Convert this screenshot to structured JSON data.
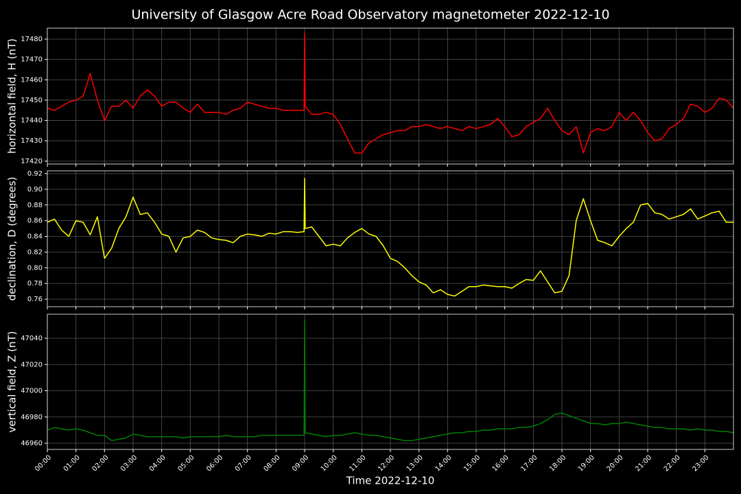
{
  "title": "University of Glasgow Acre Road Observatory magnetometer 2022-12-10",
  "chart_data": [
    {
      "type": "line",
      "ylabel": "horizontal field, H (nT)",
      "color": "#ff0000",
      "grid": true,
      "xlim": [
        0,
        24
      ],
      "ylim": [
        17418.6,
        17485.4
      ],
      "xticks": [
        0,
        1,
        2,
        3,
        4,
        5,
        6,
        7,
        8,
        9,
        10,
        11,
        12,
        13,
        14,
        15,
        16,
        17,
        18,
        19,
        20,
        21,
        22,
        23
      ],
      "yticks": [
        17420,
        17430,
        17440,
        17450,
        17460,
        17470,
        17480
      ],
      "x": [
        0,
        0.25,
        0.5,
        0.75,
        1,
        1.25,
        1.5,
        1.75,
        2,
        2.25,
        2.5,
        2.75,
        3,
        3.25,
        3.5,
        3.75,
        4,
        4.25,
        4.5,
        4.75,
        5,
        5.25,
        5.5,
        5.75,
        6,
        6.25,
        6.5,
        6.75,
        7,
        7.25,
        7.5,
        7.75,
        8,
        8.25,
        8.5,
        8.75,
        8.98,
        9,
        9.02,
        9.25,
        9.5,
        9.75,
        10,
        10.25,
        10.5,
        10.75,
        11,
        11.25,
        11.5,
        11.75,
        12,
        12.25,
        12.5,
        12.75,
        13,
        13.25,
        13.5,
        13.75,
        14,
        14.25,
        14.5,
        14.75,
        15,
        15.25,
        15.5,
        15.75,
        16,
        16.25,
        16.5,
        16.75,
        17,
        17.25,
        17.5,
        17.75,
        18,
        18.25,
        18.5,
        18.75,
        19,
        19.25,
        19.5,
        19.75,
        20,
        20.25,
        20.5,
        20.75,
        21,
        21.25,
        21.5,
        21.75,
        22,
        22.25,
        22.5,
        22.75,
        23,
        23.25,
        23.5,
        23.75,
        24
      ],
      "values": [
        17446,
        17445,
        17447,
        17449,
        17450,
        17452,
        17463,
        17450,
        17440,
        17447,
        17447,
        17450,
        17446,
        17452,
        17455,
        17452,
        17447,
        17449,
        17449,
        17446,
        17444,
        17448,
        17444,
        17444,
        17444,
        17443,
        17445,
        17446,
        17449,
        17448,
        17447,
        17446,
        17446,
        17445,
        17445,
        17445,
        17445,
        17483,
        17447,
        17443,
        17443,
        17444,
        17443,
        17438,
        17431,
        17424,
        17424,
        17429,
        17431,
        17433,
        17434,
        17435,
        17435,
        17437,
        17437,
        17438,
        17437,
        17436,
        17437,
        17436,
        17435,
        17437,
        17436,
        17437,
        17438,
        17441,
        17437,
        17432,
        17433,
        17437,
        17439,
        17441,
        17446,
        17440,
        17435,
        17433,
        17437,
        17424,
        17434,
        17436,
        17435,
        17437,
        17444,
        17440,
        17444,
        17440,
        17434,
        17430,
        17431,
        17436,
        17438,
        17441,
        17448,
        17447,
        17444,
        17446,
        17451,
        17450,
        17446
      ]
    },
    {
      "type": "line",
      "ylabel": "declination, D (degrees)",
      "color": "#ffff00",
      "grid": true,
      "xlim": [
        0,
        24
      ],
      "ylim": [
        0.7504,
        0.9235
      ],
      "xticks": [
        0,
        1,
        2,
        3,
        4,
        5,
        6,
        7,
        8,
        9,
        10,
        11,
        12,
        13,
        14,
        15,
        16,
        17,
        18,
        19,
        20,
        21,
        22,
        23
      ],
      "yticks": [
        0.76,
        0.78,
        {
          "value": 0.8,
          "label": "0.80"
        },
        0.82,
        0.84,
        0.86,
        0.88,
        {
          "value": 0.9,
          "label": "0.90"
        },
        0.92
      ],
      "x": [
        0,
        0.25,
        0.5,
        0.75,
        1,
        1.25,
        1.5,
        1.75,
        2,
        2.25,
        2.5,
        2.75,
        3,
        3.25,
        3.5,
        3.75,
        4,
        4.25,
        4.5,
        4.75,
        5,
        5.25,
        5.5,
        5.75,
        6,
        6.25,
        6.5,
        6.75,
        7,
        7.25,
        7.5,
        7.75,
        8,
        8.25,
        8.5,
        8.75,
        8.98,
        9,
        9.02,
        9.25,
        9.5,
        9.75,
        10,
        10.25,
        10.5,
        10.75,
        11,
        11.25,
        11.5,
        11.75,
        12,
        12.25,
        12.5,
        12.75,
        13,
        13.25,
        13.5,
        13.75,
        14,
        14.25,
        14.5,
        14.75,
        15,
        15.25,
        15.5,
        15.75,
        16,
        16.25,
        16.5,
        16.75,
        17,
        17.25,
        17.5,
        17.75,
        18,
        18.25,
        18.5,
        18.75,
        19,
        19.25,
        19.5,
        19.75,
        20,
        20.25,
        20.5,
        20.75,
        21,
        21.25,
        21.5,
        21.75,
        22,
        22.25,
        22.5,
        22.75,
        23,
        23.25,
        23.5,
        23.75,
        24
      ],
      "values": [
        0.858,
        0.862,
        0.848,
        0.84,
        0.86,
        0.858,
        0.842,
        0.865,
        0.812,
        0.825,
        0.85,
        0.865,
        0.89,
        0.868,
        0.87,
        0.858,
        0.843,
        0.84,
        0.82,
        0.838,
        0.84,
        0.848,
        0.845,
        0.838,
        0.836,
        0.835,
        0.832,
        0.84,
        0.843,
        0.842,
        0.84,
        0.844,
        0.843,
        0.846,
        0.846,
        0.845,
        0.846,
        0.914,
        0.85,
        0.852,
        0.84,
        0.828,
        0.83,
        0.828,
        0.838,
        0.845,
        0.85,
        0.843,
        0.84,
        0.828,
        0.812,
        0.808,
        0.8,
        0.79,
        0.782,
        0.778,
        0.768,
        0.772,
        0.766,
        0.764,
        0.77,
        0.776,
        0.776,
        0.778,
        0.777,
        0.776,
        0.776,
        0.774,
        0.78,
        0.785,
        0.784,
        0.796,
        0.782,
        0.768,
        0.77,
        0.79,
        0.86,
        0.888,
        0.86,
        0.835,
        0.832,
        0.828,
        0.84,
        0.85,
        0.858,
        0.88,
        0.882,
        0.87,
        0.868,
        0.862,
        0.865,
        0.868,
        0.875,
        0.862,
        0.866,
        0.87,
        0.872,
        0.858,
        0.858
      ]
    },
    {
      "type": "line",
      "ylabel": "vertical field, Z (nT)",
      "xlabel": "Time 2022-12-10",
      "color": "#008000",
      "grid": true,
      "xlim": [
        0,
        24
      ],
      "ylim": [
        46955.3,
        47058.3
      ],
      "xticks": [
        {
          "value": 0,
          "label": "00:00"
        },
        {
          "value": 1,
          "label": "01:00"
        },
        {
          "value": 2,
          "label": "02:00"
        },
        {
          "value": 3,
          "label": "03:00"
        },
        {
          "value": 4,
          "label": "04:00"
        },
        {
          "value": 5,
          "label": "05:00"
        },
        {
          "value": 6,
          "label": "06:00"
        },
        {
          "value": 7,
          "label": "07:00"
        },
        {
          "value": 8,
          "label": "08:00"
        },
        {
          "value": 9,
          "label": "09:00"
        },
        {
          "value": 10,
          "label": "10:00"
        },
        {
          "value": 11,
          "label": "11:00"
        },
        {
          "value": 12,
          "label": "12:00"
        },
        {
          "value": 13,
          "label": "13:00"
        },
        {
          "value": 14,
          "label": "14:00"
        },
        {
          "value": 15,
          "label": "15:00"
        },
        {
          "value": 16,
          "label": "16:00"
        },
        {
          "value": 17,
          "label": "17:00"
        },
        {
          "value": 18,
          "label": "18:00"
        },
        {
          "value": 19,
          "label": "19:00"
        },
        {
          "value": 20,
          "label": "20:00"
        },
        {
          "value": 21,
          "label": "21:00"
        },
        {
          "value": 22,
          "label": "22:00"
        },
        {
          "value": 23,
          "label": "23:00"
        }
      ],
      "yticks": [
        46960,
        46980,
        47000,
        47020,
        47040
      ],
      "x": [
        0,
        0.25,
        0.5,
        0.75,
        1,
        1.25,
        1.5,
        1.75,
        2,
        2.25,
        2.5,
        2.75,
        3,
        3.25,
        3.5,
        3.75,
        4,
        4.25,
        4.5,
        4.75,
        5,
        5.25,
        5.5,
        5.75,
        6,
        6.25,
        6.5,
        6.75,
        7,
        7.25,
        7.5,
        7.75,
        8,
        8.25,
        8.5,
        8.75,
        8.98,
        9,
        9.02,
        9.25,
        9.5,
        9.75,
        10,
        10.25,
        10.5,
        10.75,
        11,
        11.25,
        11.5,
        11.75,
        12,
        12.25,
        12.5,
        12.75,
        13,
        13.25,
        13.5,
        13.75,
        14,
        14.25,
        14.5,
        14.75,
        15,
        15.25,
        15.5,
        15.75,
        16,
        16.25,
        16.5,
        16.75,
        17,
        17.25,
        17.5,
        17.75,
        18,
        18.25,
        18.5,
        18.75,
        19,
        19.25,
        19.5,
        19.75,
        20,
        20.25,
        20.5,
        20.75,
        21,
        21.25,
        21.5,
        21.75,
        22,
        22.25,
        22.5,
        22.75,
        23,
        23.25,
        23.5,
        23.75,
        24
      ],
      "values": [
        46970,
        46972,
        46971,
        46970,
        46971,
        46970,
        46968,
        46966,
        46966,
        46962,
        46963,
        46964,
        46967,
        46966,
        46965,
        46965,
        46965,
        46965,
        46965,
        46964,
        46965,
        46965,
        46965,
        46965,
        46965,
        46966,
        46965,
        46965,
        46965,
        46965,
        46966,
        46966,
        46966,
        46966,
        46966,
        46966,
        46966,
        47054,
        46968,
        46967,
        46966,
        46965,
        46966,
        46966,
        46967,
        46968,
        46967,
        46966,
        46966,
        46965,
        46964,
        46963,
        46962,
        46962,
        46963,
        46964,
        46965,
        46966,
        46967,
        46968,
        46968,
        46969,
        46969,
        46970,
        46970,
        46971,
        46971,
        46971,
        46972,
        46972,
        46973,
        46975,
        46978,
        46982,
        46983,
        46981,
        46979,
        46977,
        46975,
        46975,
        46974,
        46975,
        46975,
        46976,
        46975,
        46974,
        46973,
        46972,
        46972,
        46971,
        46971,
        46971,
        46970,
        46971,
        46970,
        46970,
        46969,
        46969,
        46968
      ]
    }
  ]
}
